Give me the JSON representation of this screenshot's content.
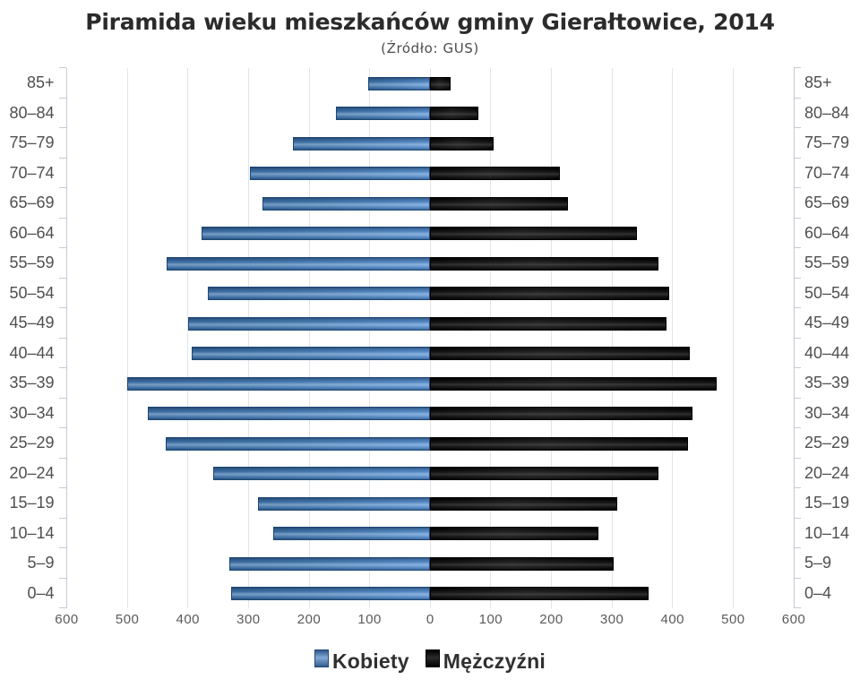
{
  "title": "Piramida wieku mieszkańców gminy Gierałtowice, 2014",
  "subtitle": "(Źródło: GUS)",
  "legend": {
    "women_label": "Kobiety",
    "men_label": "Mężczyźni"
  },
  "colors": {
    "women_bar": "#4379b1",
    "men_bar": "#1a1a1a",
    "gridline": "#e1e4e8",
    "axis": "#c3cbd3",
    "text": "#4f4f4f",
    "title_text": "#2b2b2b"
  },
  "chart_data": {
    "type": "bar",
    "variant": "population-pyramid",
    "title": "Piramida wieku mieszkańców gminy Gierałtowice, 2014",
    "subtitle": "(Źródło: GUS)",
    "categories": [
      "85+",
      "80–84",
      "75–79",
      "70–74",
      "65–69",
      "60–64",
      "55–59",
      "50–54",
      "45–49",
      "40–44",
      "35–39",
      "30–34",
      "25–29",
      "20–24",
      "15–19",
      "10–14",
      "5–9",
      "0–4"
    ],
    "series": [
      {
        "name": "Kobiety",
        "side": "left",
        "values": [
          102,
          156,
          226,
          297,
          277,
          377,
          435,
          367,
          400,
          393,
          500,
          466,
          436,
          358,
          285,
          259,
          331,
          329
        ]
      },
      {
        "name": "Mężczyźni",
        "side": "right",
        "values": [
          33,
          80,
          105,
          214,
          228,
          341,
          377,
          395,
          390,
          429,
          473,
          433,
          426,
          376,
          308,
          277,
          303,
          361
        ]
      }
    ],
    "x_axis_ticks": [
      600,
      500,
      400,
      300,
      200,
      100,
      0,
      100,
      200,
      300,
      400,
      500,
      600
    ],
    "xlim": [
      -600,
      600
    ],
    "grid": true,
    "legend_position": "bottom"
  }
}
